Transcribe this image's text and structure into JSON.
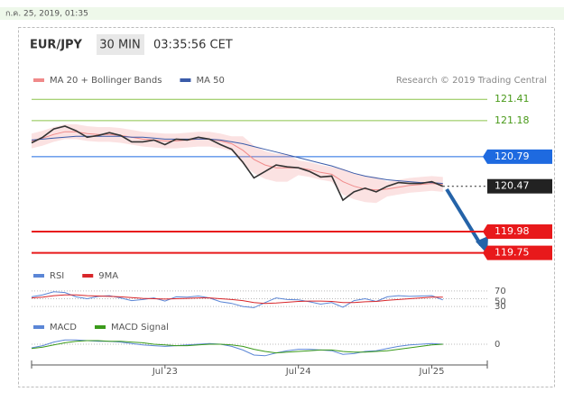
{
  "header": {
    "timestamp": "ก.ค. 25, 2019, 01:35"
  },
  "chart_data": [
    {
      "type": "line",
      "title": "EUR/JPY",
      "timeframe": "30 MIN",
      "time": "03:35:56 CET",
      "credit": "Research © 2019 Trading Central",
      "categories": [
        null,
        null,
        null,
        null,
        null,
        null,
        null,
        null,
        null,
        null,
        null,
        null,
        "Jul 23",
        null,
        null,
        null,
        null,
        null,
        null,
        null,
        null,
        null,
        null,
        null,
        "Jul 24",
        null,
        null,
        null,
        null,
        null,
        null,
        null,
        null,
        null,
        null,
        null,
        "Jul 25",
        null
      ],
      "values": [
        120.94,
        121.0,
        121.09,
        121.12,
        121.07,
        121.0,
        121.02,
        121.05,
        121.02,
        120.95,
        120.95,
        120.97,
        120.92,
        120.98,
        120.97,
        121.0,
        120.98,
        120.92,
        120.87,
        120.73,
        120.56,
        120.63,
        120.7,
        120.68,
        120.67,
        120.63,
        120.57,
        120.58,
        120.32,
        120.41,
        120.45,
        120.41,
        120.47,
        120.51,
        120.5,
        120.5,
        120.52,
        120.47
      ],
      "color": "#333333",
      "series": [
        {
          "name": "MA 20 + Bollinger Bands",
          "color": "#f08a8a",
          "values": [
            120.96,
            120.99,
            121.03,
            121.06,
            121.06,
            121.04,
            121.03,
            121.03,
            121.02,
            121.0,
            120.98,
            120.97,
            120.96,
            120.96,
            120.97,
            120.98,
            120.98,
            120.96,
            120.93,
            120.86,
            120.76,
            120.7,
            120.67,
            120.67,
            120.67,
            120.65,
            120.62,
            120.6,
            120.52,
            120.47,
            120.44,
            120.43,
            120.44,
            120.46,
            120.48,
            120.49,
            120.5,
            120.49
          ],
          "upper": [
            121.04,
            121.07,
            121.11,
            121.14,
            121.14,
            121.12,
            121.11,
            121.11,
            121.1,
            121.08,
            121.06,
            121.05,
            121.04,
            121.04,
            121.05,
            121.06,
            121.06,
            121.04,
            121.01,
            121.01,
            120.91,
            120.85,
            120.82,
            120.82,
            120.75,
            120.73,
            120.7,
            120.68,
            120.66,
            120.61,
            120.58,
            120.57,
            120.52,
            120.54,
            120.56,
            120.57,
            120.58,
            120.57
          ],
          "lower": [
            120.88,
            120.91,
            120.95,
            120.98,
            120.98,
            120.96,
            120.95,
            120.95,
            120.94,
            120.92,
            120.9,
            120.89,
            120.88,
            120.88,
            120.89,
            120.9,
            120.9,
            120.88,
            120.85,
            120.71,
            120.61,
            120.55,
            120.52,
            120.52,
            120.59,
            120.57,
            120.54,
            120.52,
            120.38,
            120.33,
            120.3,
            120.29,
            120.36,
            120.38,
            120.4,
            120.41,
            120.42,
            120.41
          ]
        },
        {
          "name": "MA 50",
          "color": "#3a5ba9",
          "values": [
            120.97,
            120.98,
            120.99,
            121.0,
            121.01,
            121.01,
            121.01,
            121.01,
            121.01,
            121.0,
            121.0,
            120.99,
            120.98,
            120.98,
            120.98,
            120.98,
            120.98,
            120.97,
            120.95,
            120.93,
            120.9,
            120.87,
            120.84,
            120.81,
            120.78,
            120.75,
            120.72,
            120.69,
            120.65,
            120.61,
            120.58,
            120.56,
            120.54,
            120.53,
            120.52,
            120.51,
            120.51,
            120.5
          ]
        }
      ],
      "levels": [
        {
          "value": 121.41,
          "color": "#8bc34a",
          "label_color": "#4a9a1a",
          "style": "text"
        },
        {
          "value": 121.18,
          "color": "#8bc34a",
          "label_color": "#4a9a1a",
          "style": "text"
        },
        {
          "value": 120.79,
          "color": "#1e6ae0",
          "label_color": "#ffffff",
          "style": "box"
        },
        {
          "value": 120.47,
          "color": "#222222",
          "label_color": "#ffffff",
          "style": "dotted"
        },
        {
          "value": 119.98,
          "color": "#e8191b",
          "label_color": "#ffffff",
          "style": "box"
        },
        {
          "value": 119.75,
          "color": "#e8191b",
          "label_color": "#ffffff",
          "style": "box"
        }
      ],
      "ylim": [
        119.6,
        121.5
      ]
    },
    {
      "type": "line",
      "series": [
        {
          "name": "RSI",
          "color": "#5b86d6",
          "values": [
            55,
            60,
            68,
            66,
            55,
            50,
            56,
            58,
            52,
            45,
            48,
            52,
            44,
            55,
            54,
            57,
            52,
            42,
            38,
            30,
            27,
            40,
            52,
            48,
            47,
            42,
            36,
            40,
            28,
            45,
            50,
            43,
            55,
            58,
            56,
            57,
            58,
            47
          ]
        },
        {
          "name": "9MA",
          "color": "#d8262a",
          "values": [
            52,
            54,
            58,
            60,
            60,
            58,
            57,
            56,
            55,
            53,
            51,
            50,
            49,
            50,
            51,
            52,
            52,
            50,
            48,
            45,
            40,
            38,
            39,
            41,
            43,
            44,
            44,
            43,
            40,
            40,
            42,
            43,
            46,
            48,
            50,
            52,
            54,
            54
          ]
        }
      ],
      "ylim": [
        0,
        100
      ],
      "yticks": [
        70,
        50,
        30
      ]
    },
    {
      "type": "line",
      "series": [
        {
          "name": "MACD",
          "color": "#5b86d6",
          "values": [
            -0.05,
            -0.02,
            0.03,
            0.06,
            0.06,
            0.05,
            0.04,
            0.04,
            0.03,
            0.01,
            -0.01,
            -0.02,
            -0.03,
            -0.02,
            -0.01,
            0.0,
            0.01,
            0.0,
            -0.03,
            -0.08,
            -0.15,
            -0.16,
            -0.12,
            -0.09,
            -0.07,
            -0.07,
            -0.08,
            -0.09,
            -0.14,
            -0.13,
            -0.1,
            -0.09,
            -0.06,
            -0.03,
            -0.01,
            0.0,
            0.01,
            0.0
          ]
        },
        {
          "name": "MACD Signal",
          "color": "#3a9a1a",
          "values": [
            -0.06,
            -0.04,
            -0.01,
            0.02,
            0.04,
            0.05,
            0.05,
            0.04,
            0.04,
            0.03,
            0.02,
            0.0,
            -0.01,
            -0.02,
            -0.02,
            -0.01,
            0.0,
            0.0,
            -0.01,
            -0.03,
            -0.07,
            -0.1,
            -0.12,
            -0.11,
            -0.1,
            -0.09,
            -0.08,
            -0.08,
            -0.1,
            -0.11,
            -0.11,
            -0.1,
            -0.09,
            -0.07,
            -0.05,
            -0.03,
            -0.01,
            0.0
          ]
        }
      ],
      "ylim": [
        -0.2,
        0.2
      ],
      "yticks": [
        0
      ]
    }
  ]
}
